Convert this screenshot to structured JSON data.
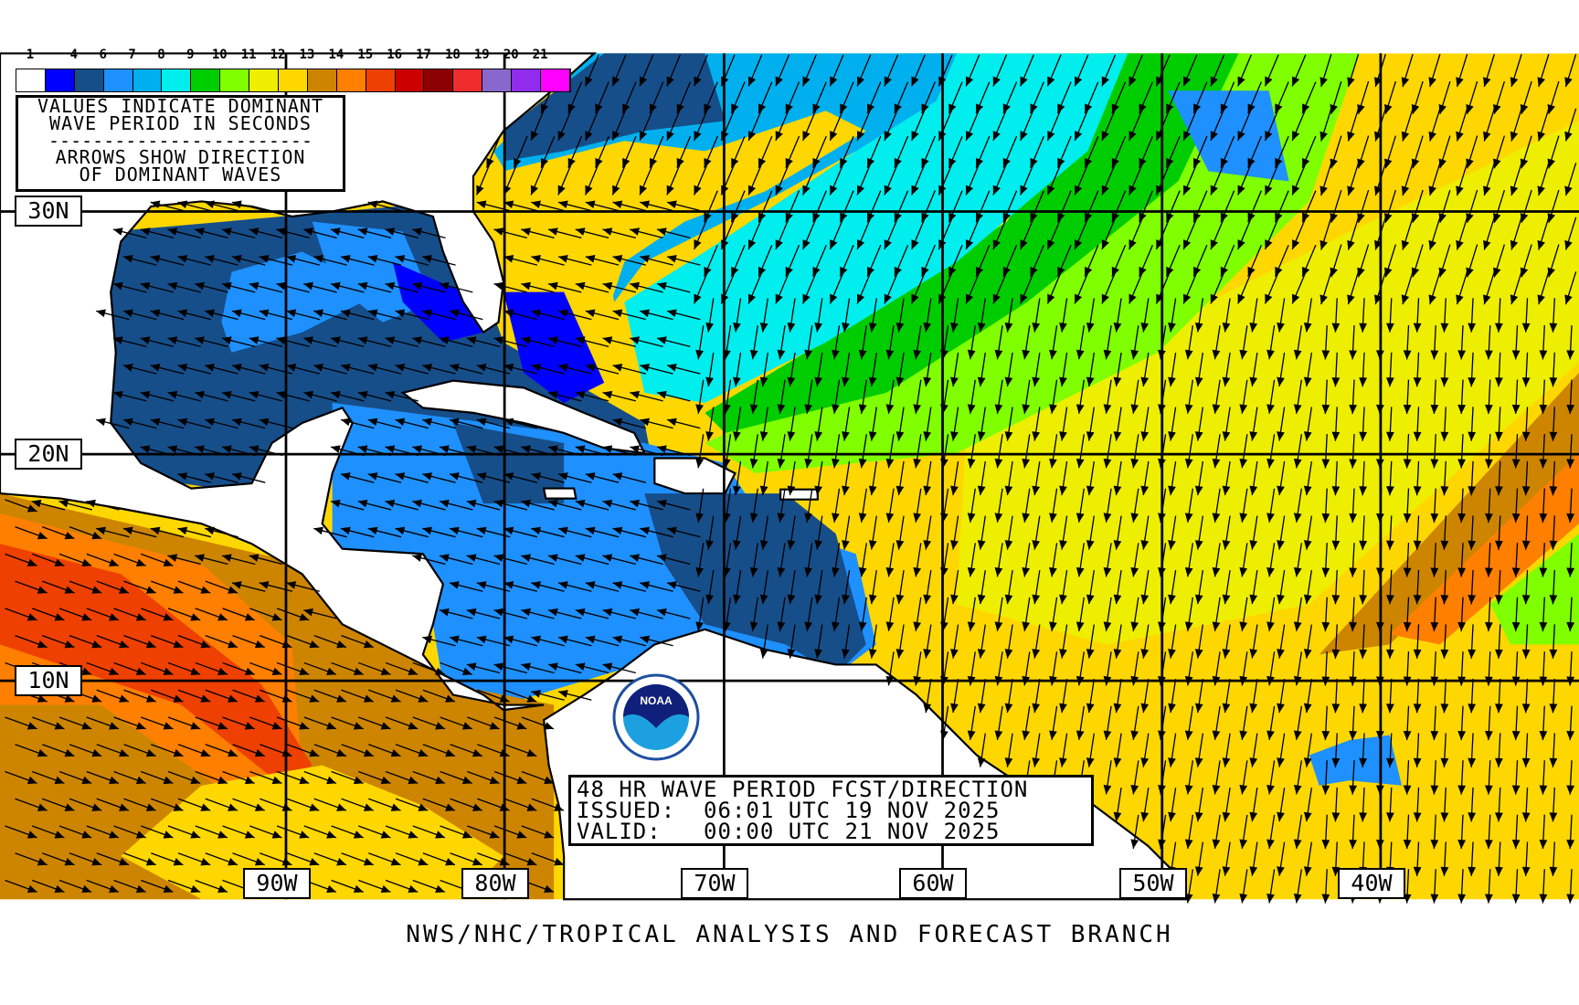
{
  "legend": {
    "labels": [
      "1",
      "4",
      "6",
      "7",
      "8",
      "9",
      "10",
      "11",
      "12",
      "13",
      "14",
      "15",
      "16",
      "17",
      "18",
      "19",
      "20",
      "21"
    ],
    "colors": [
      "#ffffff",
      "#0000ff",
      "#164e8a",
      "#1e90ff",
      "#00b0ee",
      "#00eeee",
      "#00cd00",
      "#7fff00",
      "#eeee00",
      "#ffd700",
      "#cd8500",
      "#ff7f00",
      "#ee4000",
      "#cd0000",
      "#8b0000",
      "#ee2c2c",
      "#8968cd",
      "#912cee",
      "#ff00ff"
    ]
  },
  "info": {
    "line1": "VALUES INDICATE DOMINANT",
    "line2": "WAVE PERIOD IN SECONDS",
    "divider": "------------------------",
    "line3": "ARROWS SHOW DIRECTION",
    "line4": "OF DOMINANT WAVES"
  },
  "latitudes": [
    "30N",
    "20N",
    "10N"
  ],
  "longitudes": [
    "90W",
    "80W",
    "70W",
    "60W",
    "50W",
    "40W"
  ],
  "title": {
    "line1": "48 HR WAVE PERIOD FCST/DIRECTION",
    "line2": "ISSUED:  06:01 UTC 19 NOV 2025",
    "line3": "VALID:   00:00 UTC 21 NOV 2025"
  },
  "logo": {
    "text": "NOAA"
  },
  "footer": "NWS/NHC/TROPICAL ANALYSIS AND FORECAST BRANCH"
}
